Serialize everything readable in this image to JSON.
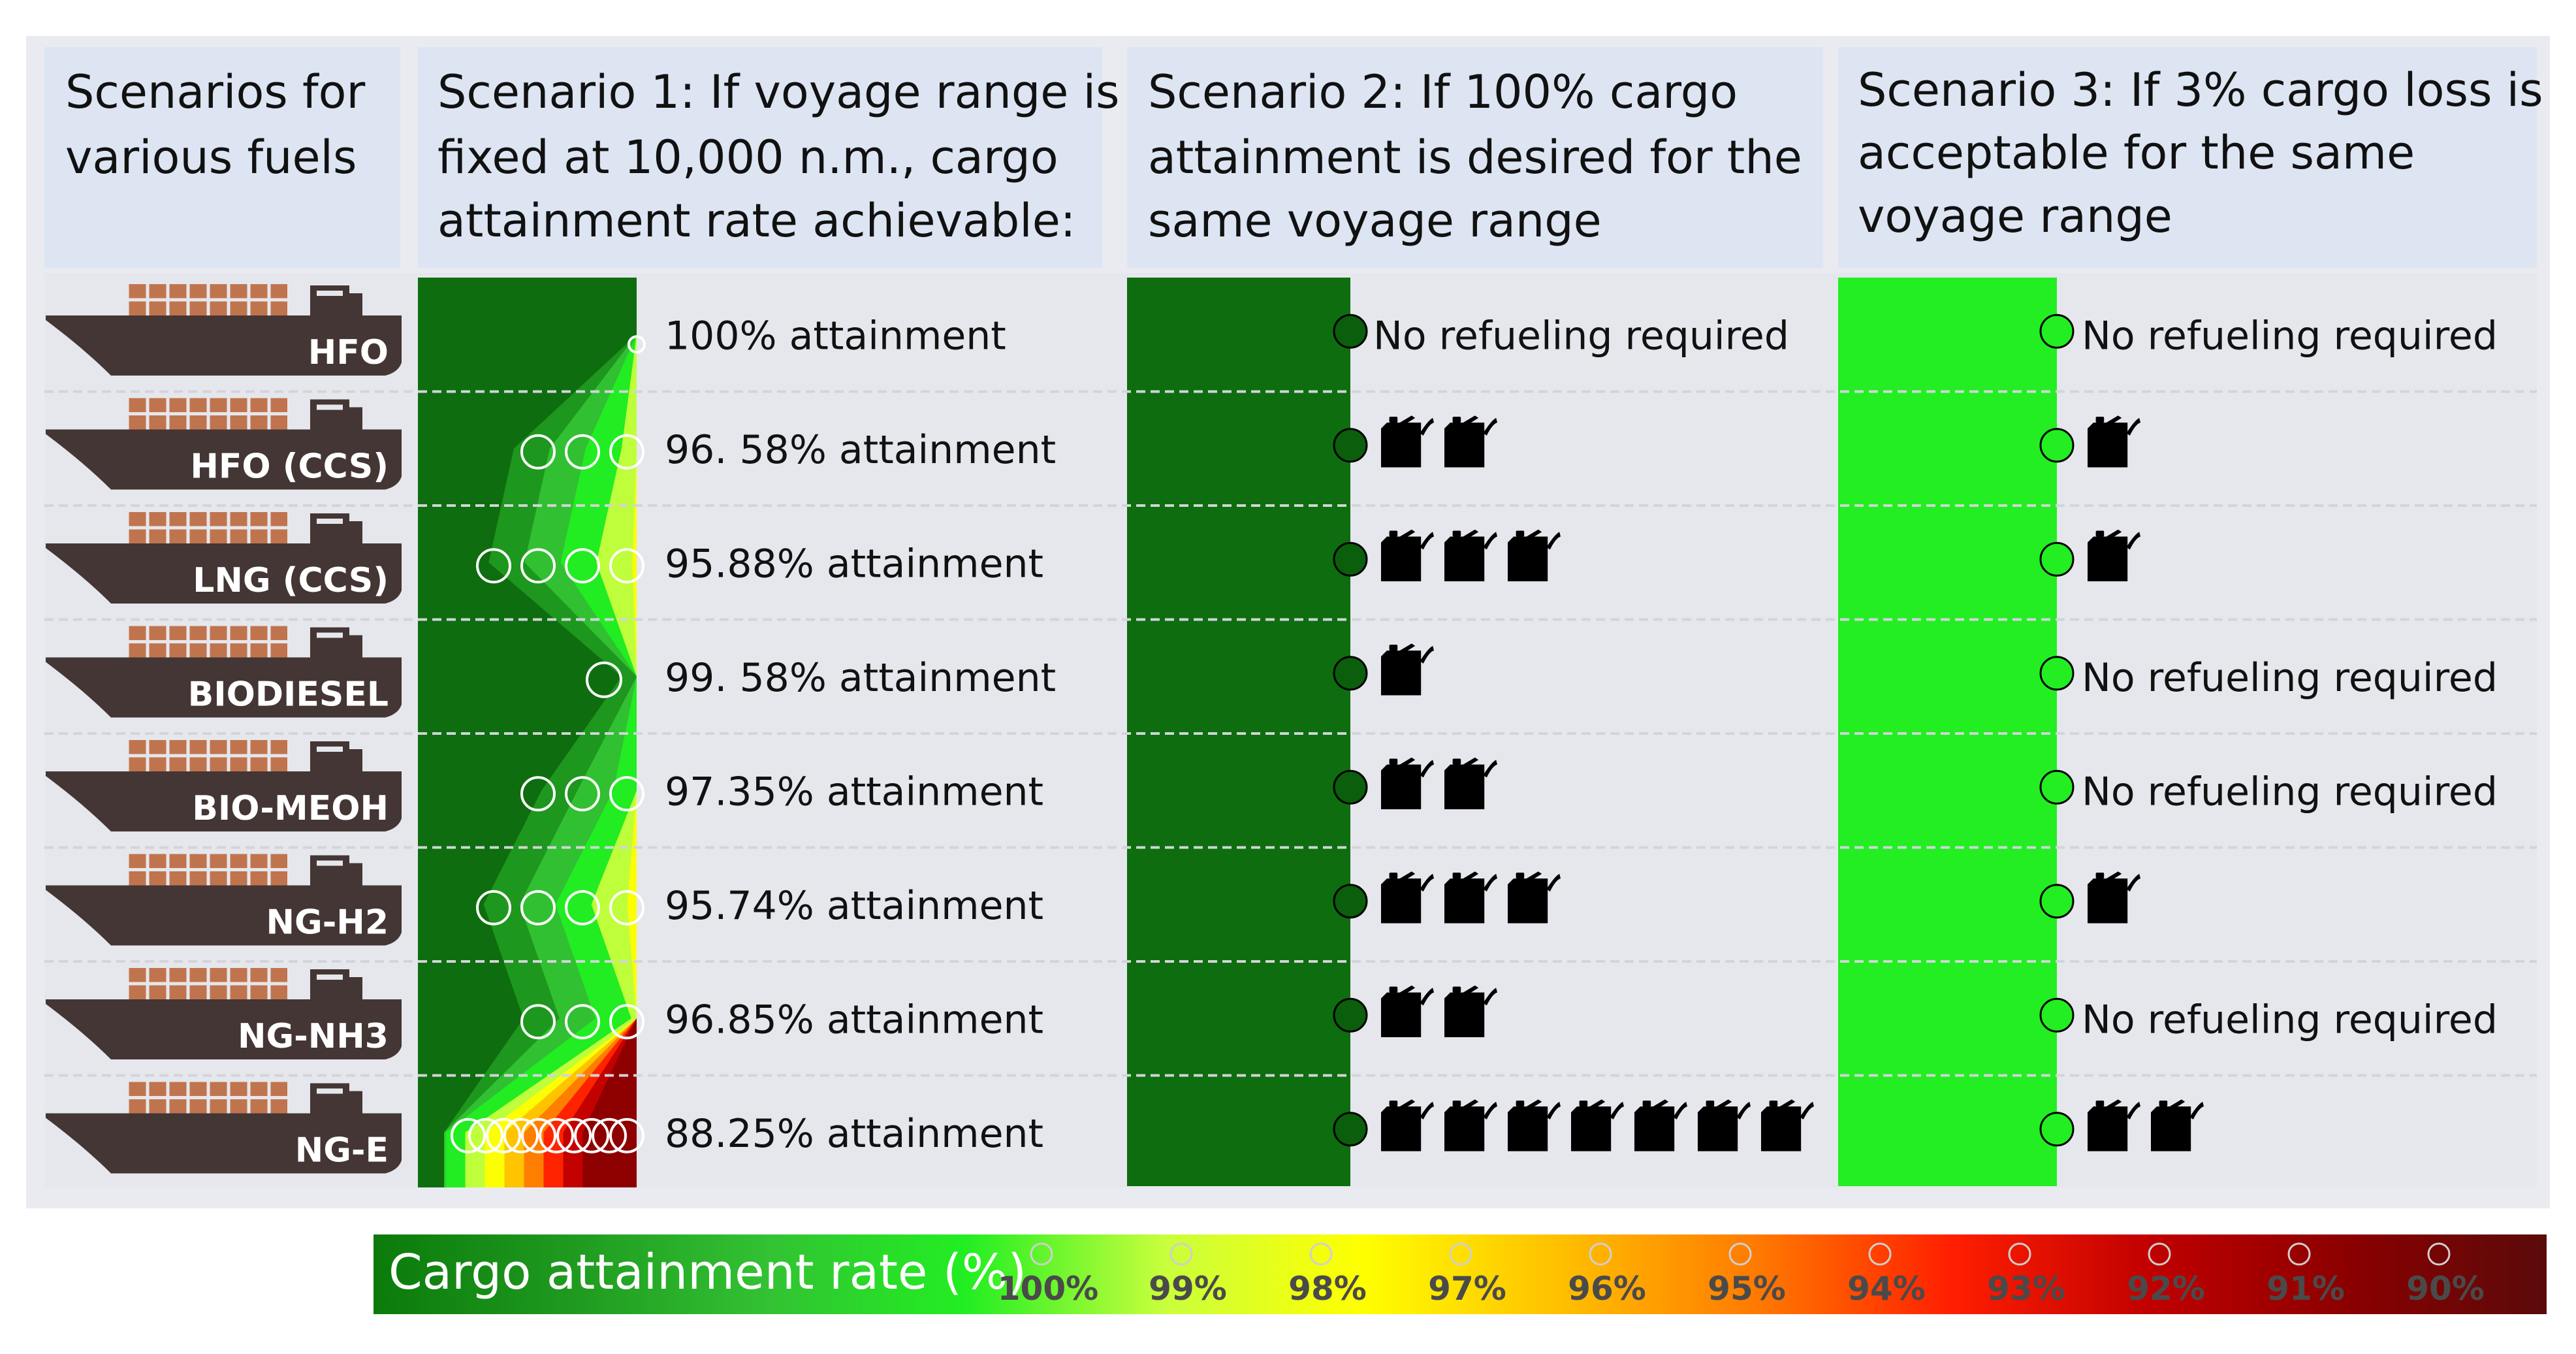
{
  "headers": {
    "col0": [
      "Scenarios for",
      "various fuels"
    ],
    "col1": [
      "Scenario 1: If voyage range is",
      "fixed at 10,000 n.m., cargo",
      "attainment rate achievable:"
    ],
    "col2": [
      "Scenario 2: If 100% cargo",
      "attainment is desired for the",
      "same voyage range"
    ],
    "col3": [
      "Scenario 3: If 3% cargo loss is",
      "acceptable for the same",
      "voyage range"
    ]
  },
  "rows": [
    {
      "fuel": "HFO",
      "attainment_label": "100% attainment",
      "attainment": 100,
      "s2_cans": 0,
      "s2_label": "No refueling required",
      "s3_cans": 0,
      "s3_label": "No refueling required"
    },
    {
      "fuel": "HFO (CCS)",
      "attainment_label": "96. 58% attainment",
      "attainment": 96.58,
      "s2_cans": 2,
      "s2_label": "",
      "s3_cans": 1,
      "s3_label": ""
    },
    {
      "fuel": "LNG (CCS)",
      "attainment_label": "95.88% attainment",
      "attainment": 95.88,
      "s2_cans": 3,
      "s2_label": "",
      "s3_cans": 1,
      "s3_label": ""
    },
    {
      "fuel": "BIODIESEL",
      "attainment_label": "99. 58% attainment",
      "attainment": 99.58,
      "s2_cans": 1,
      "s2_label": "",
      "s3_cans": 0,
      "s3_label": "No refueling required"
    },
    {
      "fuel": "BIO-MEOH",
      "attainment_label": "97.35% attainment",
      "attainment": 97.35,
      "s2_cans": 2,
      "s2_label": "",
      "s3_cans": 0,
      "s3_label": "No refueling required"
    },
    {
      "fuel": "NG-H2",
      "attainment_label": "95.74% attainment",
      "attainment": 95.74,
      "s2_cans": 3,
      "s2_label": "",
      "s3_cans": 1,
      "s3_label": ""
    },
    {
      "fuel": "NG-NH3",
      "attainment_label": "96.85% attainment",
      "attainment": 96.85,
      "s2_cans": 2,
      "s2_label": "",
      "s3_cans": 0,
      "s3_label": "No refueling required"
    },
    {
      "fuel": "NG-E",
      "attainment_label": "88.25% attainment",
      "attainment": 88.25,
      "s2_cans": 7,
      "s2_label": "",
      "s3_cans": 2,
      "s3_label": ""
    }
  ],
  "legend": {
    "title": "Cargo attainment rate (%)",
    "ticks": [
      "100%",
      "99%",
      "98%",
      "97%",
      "96%",
      "95%",
      "94%",
      "93%",
      "92%",
      "91%",
      "90%"
    ],
    "tick_values": [
      100,
      99,
      98,
      97,
      96,
      95,
      94,
      93,
      92,
      91,
      90
    ],
    "colors": [
      "#0b7a0b",
      "#1f9a1f",
      "#33c233",
      "#22ee22",
      "#c8ff3c",
      "#ffff00",
      "#ffc000",
      "#ff7a00",
      "#ff1e00",
      "#c00000",
      "#8b0000",
      "#5a0a0a"
    ]
  },
  "colors": {
    "header_bg": "#dde5f3",
    "body_bg": "#e5e7ec",
    "ship": "#433634",
    "cargo": "#c0744e",
    "dark_green": "#0e6d0e",
    "bright_green": "#22ee22",
    "can": "#000000"
  },
  "icons": {
    "ship": "container-ship-icon",
    "can": "fuel-jerrycan-icon",
    "marker": "circle-marker-icon"
  }
}
